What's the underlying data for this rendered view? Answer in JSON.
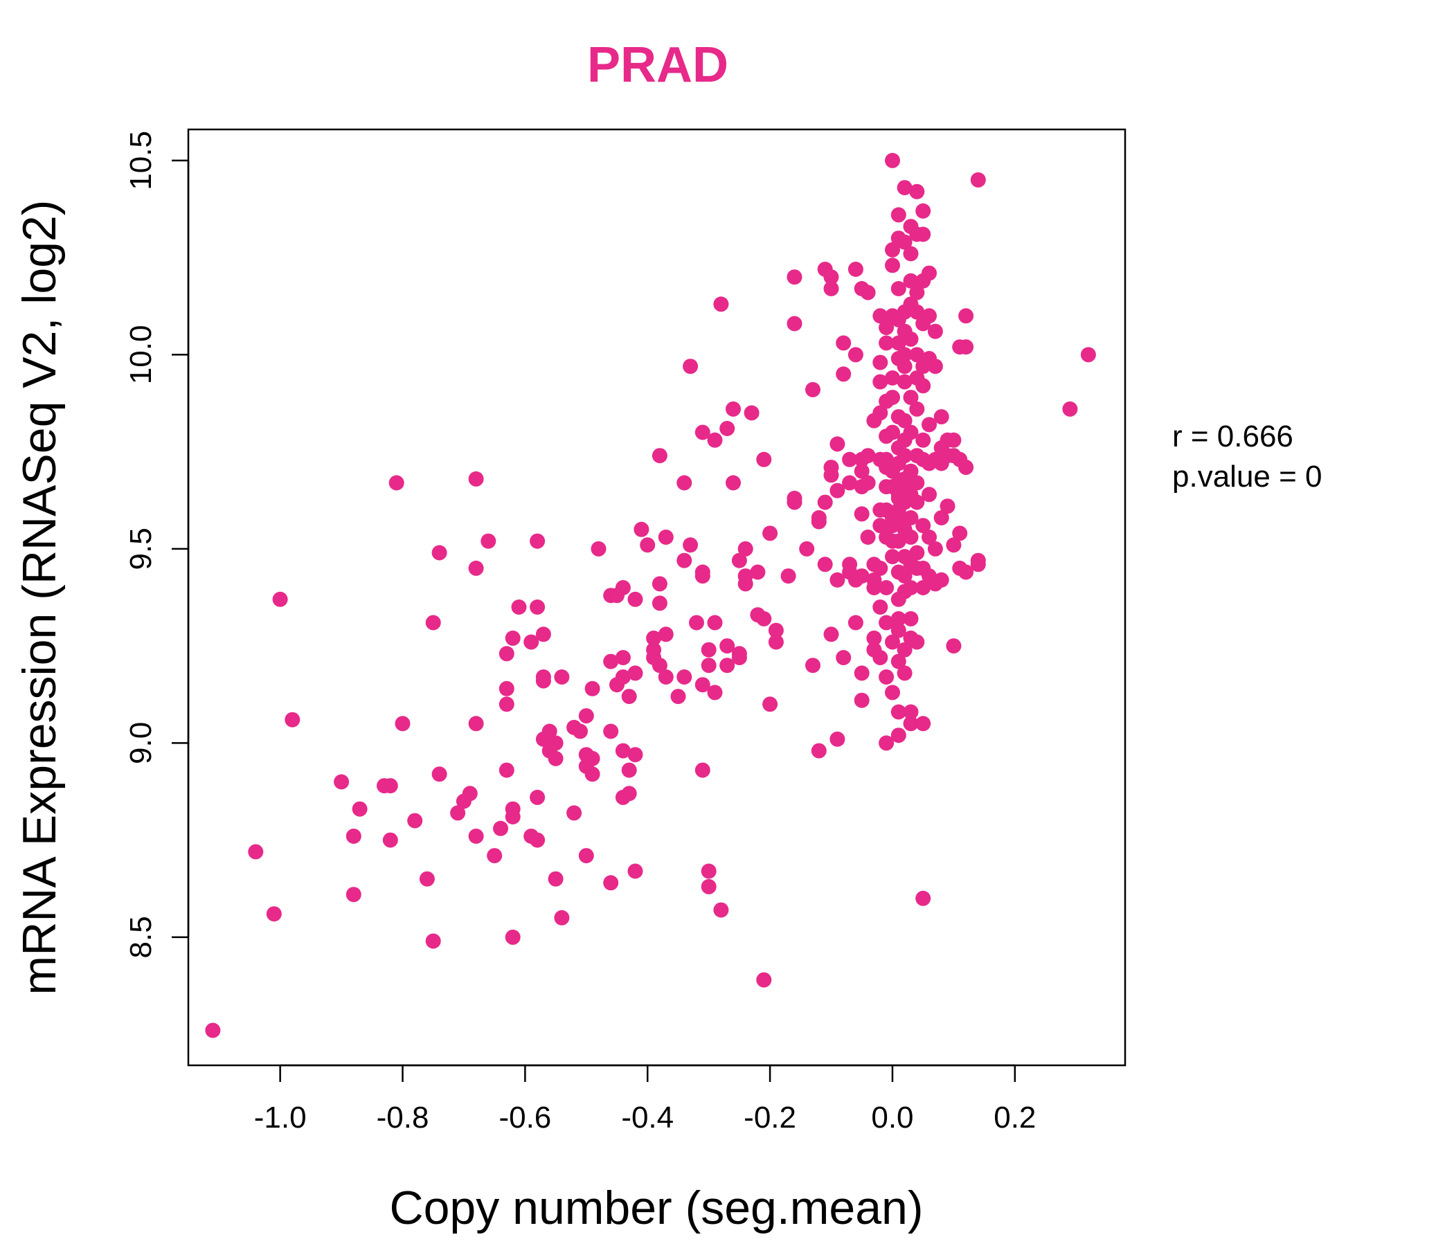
{
  "chart_data": {
    "type": "scatter",
    "title": "PRAD",
    "xlabel": "Copy number (seg.mean)",
    "ylabel": "mRNA Expression (RNASeq V2, log2)",
    "xlim": [
      -1.15,
      0.38
    ],
    "ylim": [
      8.17,
      10.58
    ],
    "x_ticks": [
      -1.0,
      -0.8,
      -0.6,
      -0.4,
      -0.2,
      0.0,
      0.2
    ],
    "x_tick_labels": [
      "-1.0",
      "-0.8",
      "-0.6",
      "-0.4",
      "-0.2",
      "0.0",
      "0.2"
    ],
    "y_ticks": [
      8.5,
      9.0,
      9.5,
      10.0,
      10.5
    ],
    "y_tick_labels": [
      "8.5",
      "9.0",
      "9.5",
      "10.0",
      "10.5"
    ],
    "grid": false,
    "legend": "none",
    "annotation": {
      "r_label": "r = 0.666",
      "p_label": "p.value = 0"
    },
    "colors": {
      "point": "#E7298A",
      "title": "#E7298A"
    },
    "points": [
      [
        -1.11,
        8.26
      ],
      [
        -1.04,
        8.72
      ],
      [
        -1.01,
        8.56
      ],
      [
        -1.0,
        9.37
      ],
      [
        -0.98,
        9.06
      ],
      [
        -0.9,
        8.9
      ],
      [
        -0.88,
        8.61
      ],
      [
        -0.88,
        8.76
      ],
      [
        -0.87,
        8.83
      ],
      [
        -0.83,
        8.89
      ],
      [
        -0.82,
        8.89
      ],
      [
        -0.82,
        8.75
      ],
      [
        -0.81,
        9.67
      ],
      [
        -0.8,
        9.05
      ],
      [
        -0.78,
        8.8
      ],
      [
        -0.76,
        8.65
      ],
      [
        -0.75,
        8.49
      ],
      [
        -0.75,
        9.31
      ],
      [
        -0.74,
        9.49
      ],
      [
        -0.74,
        8.92
      ],
      [
        -0.71,
        8.82
      ],
      [
        -0.7,
        8.85
      ],
      [
        -0.69,
        8.87
      ],
      [
        -0.68,
        9.68
      ],
      [
        -0.68,
        9.45
      ],
      [
        -0.68,
        9.05
      ],
      [
        -0.68,
        8.76
      ],
      [
        -0.66,
        9.52
      ],
      [
        -0.65,
        8.71
      ],
      [
        -0.64,
        8.78
      ],
      [
        -0.63,
        9.14
      ],
      [
        -0.63,
        9.1
      ],
      [
        -0.63,
        8.93
      ],
      [
        -0.63,
        9.23
      ],
      [
        -0.62,
        8.83
      ],
      [
        -0.62,
        8.81
      ],
      [
        -0.62,
        8.5
      ],
      [
        -0.62,
        9.27
      ],
      [
        -0.61,
        9.35
      ],
      [
        -0.59,
        8.76
      ],
      [
        -0.59,
        9.26
      ],
      [
        -0.58,
        9.52
      ],
      [
        -0.58,
        8.86
      ],
      [
        -0.58,
        9.35
      ],
      [
        -0.58,
        8.75
      ],
      [
        -0.57,
        9.28
      ],
      [
        -0.57,
        9.17
      ],
      [
        -0.57,
        9.16
      ],
      [
        -0.57,
        9.01
      ],
      [
        -0.56,
        9.03
      ],
      [
        -0.56,
        8.98
      ],
      [
        -0.55,
        8.96
      ],
      [
        -0.55,
        9.0
      ],
      [
        -0.55,
        8.65
      ],
      [
        -0.54,
        9.17
      ],
      [
        -0.54,
        8.55
      ],
      [
        -0.52,
        9.04
      ],
      [
        -0.52,
        8.82
      ],
      [
        -0.51,
        9.03
      ],
      [
        -0.5,
        8.97
      ],
      [
        -0.5,
        8.94
      ],
      [
        -0.5,
        8.71
      ],
      [
        -0.5,
        9.07
      ],
      [
        -0.49,
        9.14
      ],
      [
        -0.49,
        8.96
      ],
      [
        -0.49,
        8.92
      ],
      [
        -0.48,
        9.5
      ],
      [
        -0.46,
        9.38
      ],
      [
        -0.46,
        9.21
      ],
      [
        -0.46,
        9.03
      ],
      [
        -0.46,
        8.64
      ],
      [
        -0.45,
        9.38
      ],
      [
        -0.45,
        9.15
      ],
      [
        -0.44,
        9.4
      ],
      [
        -0.44,
        9.17
      ],
      [
        -0.44,
        9.22
      ],
      [
        -0.44,
        8.86
      ],
      [
        -0.44,
        8.98
      ],
      [
        -0.43,
        8.87
      ],
      [
        -0.43,
        9.12
      ],
      [
        -0.43,
        8.93
      ],
      [
        -0.42,
        9.37
      ],
      [
        -0.42,
        8.67
      ],
      [
        -0.42,
        9.18
      ],
      [
        -0.42,
        8.97
      ],
      [
        -0.41,
        9.55
      ],
      [
        -0.4,
        9.51
      ],
      [
        -0.39,
        9.27
      ],
      [
        -0.39,
        9.24
      ],
      [
        -0.39,
        9.22
      ],
      [
        -0.38,
        9.2
      ],
      [
        -0.38,
        9.41
      ],
      [
        -0.38,
        9.74
      ],
      [
        -0.38,
        9.36
      ],
      [
        -0.37,
        9.28
      ],
      [
        -0.37,
        9.53
      ],
      [
        -0.37,
        9.17
      ],
      [
        -0.35,
        9.12
      ],
      [
        -0.34,
        9.17
      ],
      [
        -0.34,
        9.67
      ],
      [
        -0.34,
        9.47
      ],
      [
        -0.33,
        9.51
      ],
      [
        -0.33,
        9.97
      ],
      [
        -0.32,
        9.31
      ],
      [
        -0.31,
        9.8
      ],
      [
        -0.31,
        9.44
      ],
      [
        -0.31,
        9.43
      ],
      [
        -0.31,
        9.15
      ],
      [
        -0.31,
        8.93
      ],
      [
        -0.3,
        8.67
      ],
      [
        -0.3,
        8.63
      ],
      [
        -0.3,
        9.2
      ],
      [
        -0.3,
        9.24
      ],
      [
        -0.29,
        9.31
      ],
      [
        -0.29,
        9.78
      ],
      [
        -0.29,
        9.13
      ],
      [
        -0.28,
        8.57
      ],
      [
        -0.28,
        10.13
      ],
      [
        -0.27,
        9.81
      ],
      [
        -0.27,
        9.25
      ],
      [
        -0.27,
        9.2
      ],
      [
        -0.26,
        9.86
      ],
      [
        -0.26,
        9.67
      ],
      [
        -0.25,
        9.47
      ],
      [
        -0.25,
        9.23
      ],
      [
        -0.25,
        9.22
      ],
      [
        -0.24,
        9.43
      ],
      [
        -0.24,
        9.5
      ],
      [
        -0.24,
        9.41
      ],
      [
        -0.23,
        9.85
      ],
      [
        -0.22,
        9.44
      ],
      [
        -0.22,
        9.33
      ],
      [
        -0.21,
        8.39
      ],
      [
        -0.21,
        9.32
      ],
      [
        -0.21,
        9.73
      ],
      [
        -0.2,
        9.54
      ],
      [
        -0.2,
        9.1
      ],
      [
        -0.19,
        9.26
      ],
      [
        -0.19,
        9.29
      ],
      [
        -0.17,
        9.43
      ],
      [
        -0.16,
        10.08
      ],
      [
        -0.16,
        10.2
      ],
      [
        -0.16,
        9.63
      ],
      [
        -0.16,
        9.62
      ],
      [
        -0.14,
        9.5
      ],
      [
        -0.13,
        9.91
      ],
      [
        -0.13,
        9.2
      ],
      [
        -0.12,
        9.58
      ],
      [
        -0.12,
        8.98
      ],
      [
        -0.12,
        9.57
      ],
      [
        -0.11,
        10.22
      ],
      [
        -0.11,
        9.46
      ],
      [
        -0.11,
        9.62
      ],
      [
        -0.1,
        9.28
      ],
      [
        -0.1,
        10.17
      ],
      [
        -0.1,
        10.2
      ],
      [
        -0.1,
        9.71
      ],
      [
        -0.1,
        9.69
      ],
      [
        -0.09,
        9.77
      ],
      [
        -0.09,
        9.65
      ],
      [
        -0.09,
        9.01
      ],
      [
        -0.09,
        9.42
      ],
      [
        -0.08,
        9.22
      ],
      [
        -0.08,
        10.03
      ],
      [
        -0.08,
        9.95
      ],
      [
        -0.07,
        9.67
      ],
      [
        -0.07,
        9.46
      ],
      [
        -0.07,
        9.73
      ],
      [
        -0.07,
        9.44
      ],
      [
        -0.06,
        10.22
      ],
      [
        -0.06,
        9.31
      ],
      [
        -0.06,
        10.0
      ],
      [
        -0.06,
        9.42
      ],
      [
        -0.05,
        9.7
      ],
      [
        -0.05,
        9.66
      ],
      [
        -0.05,
        9.73
      ],
      [
        -0.05,
        9.43
      ],
      [
        -0.05,
        9.11
      ],
      [
        -0.05,
        9.18
      ],
      [
        -0.05,
        9.59
      ],
      [
        -0.05,
        10.17
      ],
      [
        -0.04,
        9.53
      ],
      [
        -0.04,
        9.67
      ],
      [
        -0.04,
        10.16
      ],
      [
        -0.04,
        9.74
      ],
      [
        -0.03,
        9.42
      ],
      [
        -0.03,
        9.24
      ],
      [
        -0.03,
        9.27
      ],
      [
        -0.03,
        9.83
      ],
      [
        -0.03,
        9.46
      ],
      [
        -0.03,
        9.4
      ],
      [
        -0.02,
        9.22
      ],
      [
        -0.02,
        9.35
      ],
      [
        -0.02,
        10.1
      ],
      [
        -0.02,
        9.73
      ],
      [
        -0.02,
        9.85
      ],
      [
        -0.02,
        9.93
      ],
      [
        -0.02,
        9.98
      ],
      [
        -0.02,
        9.56
      ],
      [
        -0.02,
        9.6
      ],
      [
        -0.02,
        9.45
      ],
      [
        -0.01,
        9.17
      ],
      [
        -0.01,
        9.31
      ],
      [
        -0.01,
        9.0
      ],
      [
        -0.01,
        9.53
      ],
      [
        -0.01,
        9.73
      ],
      [
        -0.01,
        10.03
      ],
      [
        -0.01,
        9.79
      ],
      [
        -0.01,
        9.66
      ],
      [
        -0.01,
        9.71
      ],
      [
        -0.01,
        9.6
      ],
      [
        -0.01,
        9.4
      ],
      [
        -0.01,
        10.07
      ],
      [
        -0.01,
        9.88
      ],
      [
        0.0,
        10.5
      ],
      [
        0.0,
        10.23
      ],
      [
        0.0,
        10.27
      ],
      [
        0.0,
        9.48
      ],
      [
        0.0,
        9.58
      ],
      [
        0.0,
        9.7
      ],
      [
        0.0,
        9.66
      ],
      [
        0.0,
        9.89
      ],
      [
        0.0,
        9.13
      ],
      [
        0.0,
        9.26
      ],
      [
        0.0,
        10.1
      ],
      [
        0.0,
        9.94
      ],
      [
        0.0,
        9.8
      ],
      [
        0.0,
        9.52
      ],
      [
        0.0,
        9.56
      ],
      [
        0.01,
        10.36
      ],
      [
        0.01,
        10.3
      ],
      [
        0.01,
        10.09
      ],
      [
        0.01,
        9.99
      ],
      [
        0.01,
        9.08
      ],
      [
        0.01,
        9.02
      ],
      [
        0.01,
        9.32
      ],
      [
        0.01,
        9.37
      ],
      [
        0.01,
        9.29
      ],
      [
        0.01,
        9.21
      ],
      [
        0.01,
        9.44
      ],
      [
        0.01,
        9.52
      ],
      [
        0.01,
        9.64
      ],
      [
        0.01,
        9.72
      ],
      [
        0.01,
        9.76
      ],
      [
        0.01,
        9.84
      ],
      [
        0.01,
        10.03
      ],
      [
        0.01,
        10.17
      ],
      [
        0.01,
        9.6
      ],
      [
        0.01,
        9.63
      ],
      [
        0.01,
        9.67
      ],
      [
        0.02,
        10.43
      ],
      [
        0.02,
        10.29
      ],
      [
        0.02,
        9.93
      ],
      [
        0.02,
        9.83
      ],
      [
        0.02,
        9.74
      ],
      [
        0.02,
        9.78
      ],
      [
        0.02,
        9.57
      ],
      [
        0.02,
        9.62
      ],
      [
        0.02,
        9.67
      ],
      [
        0.02,
        9.48
      ],
      [
        0.02,
        9.43
      ],
      [
        0.02,
        9.39
      ],
      [
        0.02,
        9.24
      ],
      [
        0.02,
        9.18
      ],
      [
        0.02,
        10.11
      ],
      [
        0.02,
        10.06
      ],
      [
        0.02,
        10.0
      ],
      [
        0.02,
        9.97
      ],
      [
        0.02,
        9.68
      ],
      [
        0.02,
        9.55
      ],
      [
        0.03,
        10.26
      ],
      [
        0.03,
        10.33
      ],
      [
        0.03,
        10.19
      ],
      [
        0.03,
        10.13
      ],
      [
        0.03,
        10.04
      ],
      [
        0.03,
        9.89
      ],
      [
        0.03,
        9.8
      ],
      [
        0.03,
        9.7
      ],
      [
        0.03,
        9.64
      ],
      [
        0.03,
        9.58
      ],
      [
        0.03,
        9.53
      ],
      [
        0.03,
        9.46
      ],
      [
        0.03,
        9.4
      ],
      [
        0.03,
        9.32
      ],
      [
        0.03,
        9.27
      ],
      [
        0.03,
        9.08
      ],
      [
        0.03,
        9.05
      ],
      [
        0.04,
        10.42
      ],
      [
        0.04,
        10.31
      ],
      [
        0.04,
        10.16
      ],
      [
        0.04,
        10.11
      ],
      [
        0.04,
        10.0
      ],
      [
        0.04,
        9.94
      ],
      [
        0.04,
        9.86
      ],
      [
        0.04,
        9.74
      ],
      [
        0.04,
        9.67
      ],
      [
        0.04,
        9.62
      ],
      [
        0.04,
        9.49
      ],
      [
        0.04,
        9.45
      ],
      [
        0.04,
        9.26
      ],
      [
        0.05,
        10.37
      ],
      [
        0.05,
        10.31
      ],
      [
        0.05,
        10.19
      ],
      [
        0.05,
        10.08
      ],
      [
        0.05,
        9.97
      ],
      [
        0.05,
        9.92
      ],
      [
        0.05,
        9.78
      ],
      [
        0.05,
        9.73
      ],
      [
        0.05,
        9.56
      ],
      [
        0.05,
        9.45
      ],
      [
        0.05,
        9.4
      ],
      [
        0.05,
        8.6
      ],
      [
        0.05,
        9.05
      ],
      [
        0.06,
        10.21
      ],
      [
        0.06,
        10.1
      ],
      [
        0.06,
        9.99
      ],
      [
        0.06,
        9.82
      ],
      [
        0.06,
        9.72
      ],
      [
        0.06,
        9.64
      ],
      [
        0.06,
        9.53
      ],
      [
        0.06,
        9.43
      ],
      [
        0.07,
        10.06
      ],
      [
        0.07,
        9.97
      ],
      [
        0.07,
        9.73
      ],
      [
        0.07,
        9.5
      ],
      [
        0.07,
        9.41
      ],
      [
        0.08,
        9.84
      ],
      [
        0.08,
        9.76
      ],
      [
        0.08,
        9.72
      ],
      [
        0.08,
        9.42
      ],
      [
        0.08,
        9.58
      ],
      [
        0.09,
        9.78
      ],
      [
        0.09,
        9.74
      ],
      [
        0.09,
        9.61
      ],
      [
        0.1,
        9.78
      ],
      [
        0.1,
        9.74
      ],
      [
        0.1,
        9.51
      ],
      [
        0.1,
        9.25
      ],
      [
        0.11,
        9.54
      ],
      [
        0.11,
        10.02
      ],
      [
        0.11,
        9.73
      ],
      [
        0.11,
        9.45
      ],
      [
        0.12,
        9.71
      ],
      [
        0.12,
        10.1
      ],
      [
        0.12,
        10.02
      ],
      [
        0.12,
        9.44
      ],
      [
        0.14,
        9.47
      ],
      [
        0.14,
        9.46
      ],
      [
        0.14,
        10.45
      ],
      [
        0.29,
        9.86
      ],
      [
        0.32,
        10.0
      ]
    ]
  }
}
